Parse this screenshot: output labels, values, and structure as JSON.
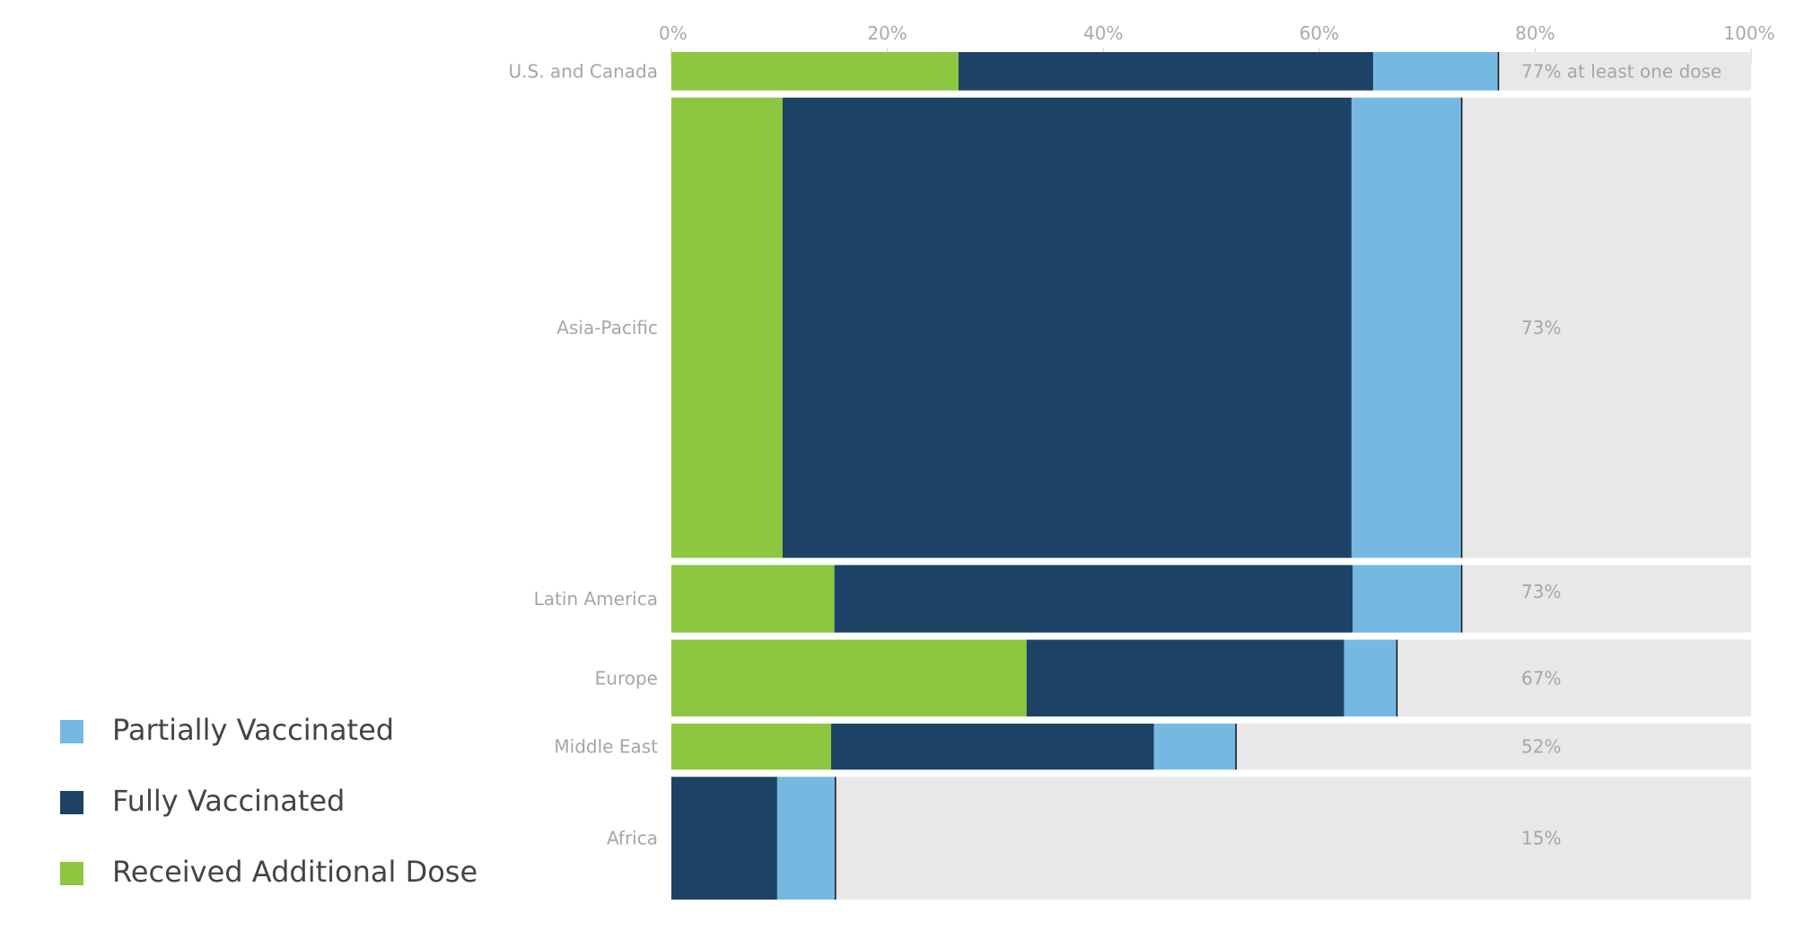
{
  "chart_data": {
    "type": "bar",
    "orientation": "horizontal",
    "stacked": true,
    "variable_width": true,
    "categories": [
      "U.S. and Canada",
      "Asia-Pacific",
      "Latin America",
      "Europe",
      "Middle East",
      "Africa"
    ],
    "series": [
      {
        "name": "Received Additional Dose",
        "color": "#8dc63f",
        "values": [
          26.6,
          10.3,
          15.1,
          32.9,
          14.8,
          0
        ]
      },
      {
        "name": "Fully Vaccinated",
        "color": "#1c4266",
        "values": [
          38.4,
          52.7,
          48.0,
          29.4,
          29.9,
          9.8
        ]
      },
      {
        "name": "Partially Vaccinated",
        "color": "#75b9e3",
        "values": [
          11.6,
          10.2,
          10.1,
          4.9,
          7.6,
          5.4
        ]
      }
    ],
    "category_weights": [
      2.5,
      30.0,
      4.4,
      5.0,
      3.0,
      8.0
    ],
    "totals": [
      76.6,
      73.2,
      73.2,
      67.2,
      52.3,
      15.2
    ],
    "total_labels": [
      "77% at least one dose",
      "73%",
      "73%",
      "67%",
      "52%",
      "15%"
    ],
    "x_ticks": [
      "0%",
      "20%",
      "40%",
      "60%",
      "80%",
      "100%"
    ],
    "xlim": [
      0,
      100
    ],
    "background_color": "#e8e8e8",
    "xlabel": "",
    "ylabel": "",
    "grid": false,
    "legend": {
      "placement": "bottom-left",
      "order": [
        "Partially Vaccinated",
        "Fully Vaccinated",
        "Received Additional Dose"
      ]
    }
  }
}
